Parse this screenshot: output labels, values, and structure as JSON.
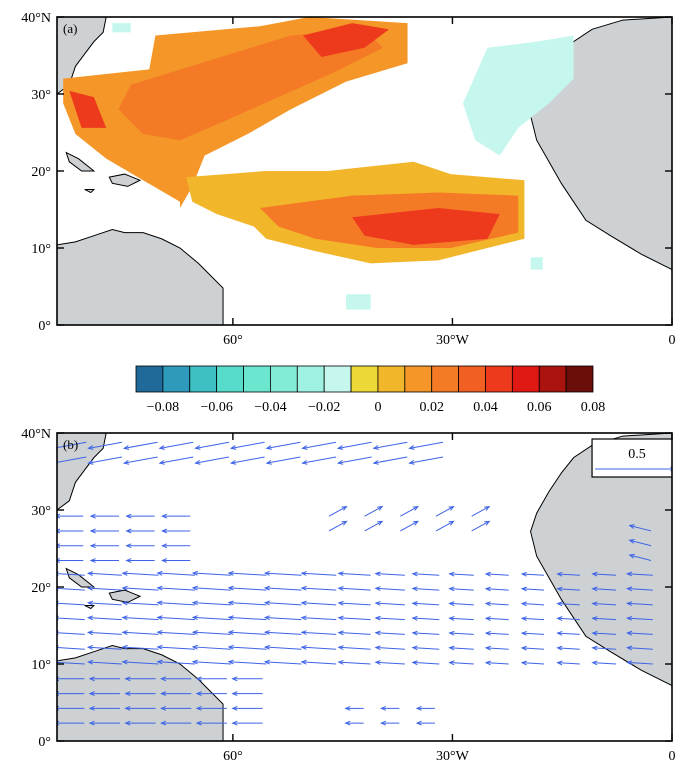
{
  "panel_a": {
    "label": "(a)",
    "lat_ticks": [
      "40°N",
      "30°",
      "20°",
      "10°",
      "0°"
    ],
    "lon_ticks": [
      "60°",
      "30°W",
      "0"
    ],
    "colorbar": {
      "ticks": [
        "−0.08",
        "−0.06",
        "−0.04",
        "−0.02",
        "0",
        "0.02",
        "0.04",
        "0.06",
        "0.08"
      ],
      "colors": [
        "#1f6a98",
        "#2f9bbc",
        "#3dbfc4",
        "#57dccc",
        "#6be7d0",
        "#82ecd6",
        "#9ff2e1",
        "#c6f7ee",
        "#ecd836",
        "#f2b62a",
        "#f49728",
        "#f47a26",
        "#f25f22",
        "#ee3a1c",
        "#e01915",
        "#a9140f",
        "#6b0d08"
      ]
    }
  },
  "panel_b": {
    "label": "(b)",
    "lat_ticks": [
      "40°N",
      "30°",
      "20°",
      "10°",
      "0°"
    ],
    "lon_ticks": [
      "60°",
      "30°W",
      "0"
    ],
    "reference_vector": "0.5",
    "vector_color": "#3d63e6"
  },
  "colors": {
    "land": "#cdd1d3",
    "coast": "#000000"
  }
}
